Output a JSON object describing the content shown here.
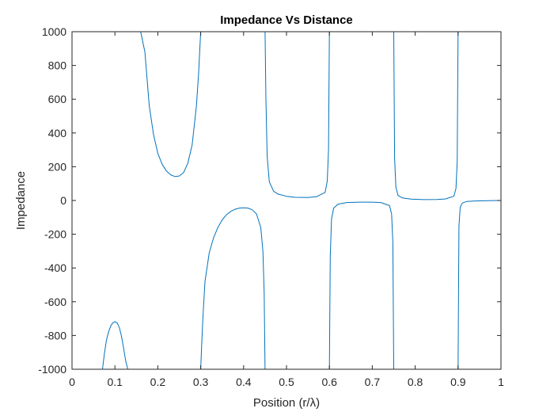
{
  "chart_data": {
    "type": "line",
    "title": "Impedance Vs Distance",
    "xlabel": "Position (r/λ)",
    "ylabel": "Impedance",
    "xlim": [
      0,
      1
    ],
    "ylim": [
      -1000,
      1000
    ],
    "xticks": [
      "0",
      "0.1",
      "0.2",
      "0.3",
      "0.4",
      "0.5",
      "0.6",
      "0.7",
      "0.8",
      "0.9",
      "1"
    ],
    "yticks": [
      "-1000",
      "-800",
      "-600",
      "-400",
      "-200",
      "0",
      "200",
      "400",
      "600",
      "800",
      "1000"
    ],
    "grid": false,
    "legend": "none",
    "series_color": "#0072BD",
    "axis_color": "#262626",
    "series": [
      {
        "segments": [
          {
            "x": [
              0.071,
              0.075,
              0.08,
              0.085,
              0.09,
              0.095,
              0.1,
              0.105,
              0.11,
              0.115,
              0.12,
              0.125,
              0.13
            ],
            "y": [
              -1000,
              -915,
              -830,
              -780,
              -745,
              -725,
              -718,
              -725,
              -750,
              -800,
              -870,
              -950,
              -1000
            ]
          },
          {
            "x": [
              0.16,
              0.17,
              0.18,
              0.19,
              0.2,
              0.21,
              0.22,
              0.23,
              0.24,
              0.25,
              0.26,
              0.27,
              0.28,
              0.29,
              0.295,
              0.298,
              0.3
            ],
            "y": [
              1000,
              880,
              560,
              390,
              280,
              215,
              175,
              152,
              142,
              145,
              165,
              220,
              330,
              560,
              750,
              900,
              1000
            ]
          },
          {
            "x": [
              0.3,
              0.302,
              0.305,
              0.31,
              0.32,
              0.33,
              0.34,
              0.35,
              0.36,
              0.37,
              0.38,
              0.39,
              0.4,
              0.41,
              0.42,
              0.43,
              0.44,
              0.445,
              0.448,
              0.45
            ],
            "y": [
              -1000,
              -870,
              -700,
              -480,
              -310,
              -220,
              -160,
              -115,
              -85,
              -65,
              -52,
              -45,
              -43,
              -45,
              -55,
              -80,
              -160,
              -300,
              -550,
              -1000
            ]
          },
          {
            "x": [
              0.45,
              0.452,
              0.455,
              0.46,
              0.47,
              0.48,
              0.5,
              0.52,
              0.55,
              0.57,
              0.59,
              0.595,
              0.598,
              0.6
            ],
            "y": [
              1000,
              600,
              260,
              110,
              55,
              38,
              25,
              19,
              18,
              22,
              48,
              115,
              300,
              1000
            ]
          },
          {
            "x": [
              0.6,
              0.602,
              0.605,
              0.61,
              0.62,
              0.64,
              0.67,
              0.7,
              0.72,
              0.74,
              0.745,
              0.748,
              0.75
            ],
            "y": [
              -1000,
              -330,
              -110,
              -45,
              -22,
              -12,
              -10,
              -10,
              -12,
              -30,
              -80,
              -250,
              -1000
            ]
          },
          {
            "x": [
              0.75,
              0.752,
              0.755,
              0.76,
              0.77,
              0.79,
              0.82,
              0.85,
              0.87,
              0.89,
              0.895,
              0.898,
              0.9
            ],
            "y": [
              1000,
              250,
              80,
              30,
              15,
              8,
              5,
              6,
              9,
              25,
              70,
              230,
              1000
            ]
          },
          {
            "x": [
              0.9,
              0.902,
              0.905,
              0.91,
              0.92,
              0.94,
              0.97,
              1.0
            ],
            "y": [
              -1000,
              -150,
              -40,
              -15,
              -6,
              -3,
              -1,
              0
            ]
          }
        ]
      }
    ]
  }
}
